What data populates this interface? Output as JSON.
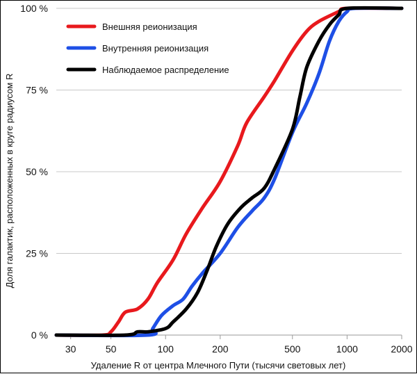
{
  "chart_data": {
    "type": "line",
    "xscale": "log",
    "xlim": [
      25,
      2000
    ],
    "ylim": [
      0,
      100
    ],
    "xlabel": "Удаление R от центра Млечного Пути (тысячи световых лет)",
    "ylabel": "Доля галактик, расположенных в круге радиусом R",
    "x_ticks": [
      30,
      50,
      100,
      200,
      500,
      1000,
      2000
    ],
    "x_tick_labels": [
      "30",
      "50",
      "100",
      "200",
      "500",
      "1000",
      "2000"
    ],
    "y_ticks": [
      0,
      25,
      50,
      75,
      100
    ],
    "y_tick_labels": [
      "0 %",
      "25 %",
      "50 %",
      "75 %",
      "100 %"
    ],
    "grid": "horizontal",
    "legend_position": "top-left",
    "series": [
      {
        "name": "Внешняя реионизация",
        "color": "#e8191d",
        "points": [
          [
            25,
            0
          ],
          [
            45,
            0
          ],
          [
            50,
            1
          ],
          [
            55,
            4
          ],
          [
            60,
            7
          ],
          [
            70,
            8
          ],
          [
            80,
            11
          ],
          [
            90,
            16
          ],
          [
            110,
            23
          ],
          [
            130,
            31
          ],
          [
            160,
            39
          ],
          [
            200,
            47
          ],
          [
            250,
            58
          ],
          [
            280,
            65
          ],
          [
            350,
            73
          ],
          [
            400,
            78
          ],
          [
            500,
            87
          ],
          [
            600,
            93
          ],
          [
            700,
            96
          ],
          [
            900,
            99
          ],
          [
            1000,
            100
          ],
          [
            2000,
            100
          ]
        ]
      },
      {
        "name": "Внутренняя реионизация",
        "color": "#1e4fe6",
        "points": [
          [
            25,
            0
          ],
          [
            80,
            0
          ],
          [
            85,
            2
          ],
          [
            95,
            6
          ],
          [
            110,
            9
          ],
          [
            125,
            11
          ],
          [
            140,
            15
          ],
          [
            160,
            19
          ],
          [
            200,
            25
          ],
          [
            250,
            33
          ],
          [
            300,
            38
          ],
          [
            350,
            42
          ],
          [
            400,
            48
          ],
          [
            500,
            62
          ],
          [
            600,
            71
          ],
          [
            700,
            80
          ],
          [
            800,
            90
          ],
          [
            900,
            96
          ],
          [
            1000,
            99
          ],
          [
            1100,
            100
          ],
          [
            2000,
            100
          ]
        ]
      },
      {
        "name": "Наблюдаемое распределение",
        "color": "#000000",
        "points": [
          [
            25,
            0
          ],
          [
            60,
            0
          ],
          [
            70,
            1
          ],
          [
            80,
            1
          ],
          [
            100,
            2
          ],
          [
            110,
            4
          ],
          [
            130,
            8
          ],
          [
            150,
            13
          ],
          [
            170,
            20
          ],
          [
            190,
            27
          ],
          [
            220,
            34
          ],
          [
            260,
            39
          ],
          [
            300,
            42
          ],
          [
            350,
            45
          ],
          [
            400,
            51
          ],
          [
            500,
            63
          ],
          [
            550,
            73
          ],
          [
            600,
            82
          ],
          [
            700,
            90
          ],
          [
            800,
            95
          ],
          [
            900,
            98
          ],
          [
            1000,
            100
          ],
          [
            2000,
            100
          ]
        ]
      }
    ]
  }
}
